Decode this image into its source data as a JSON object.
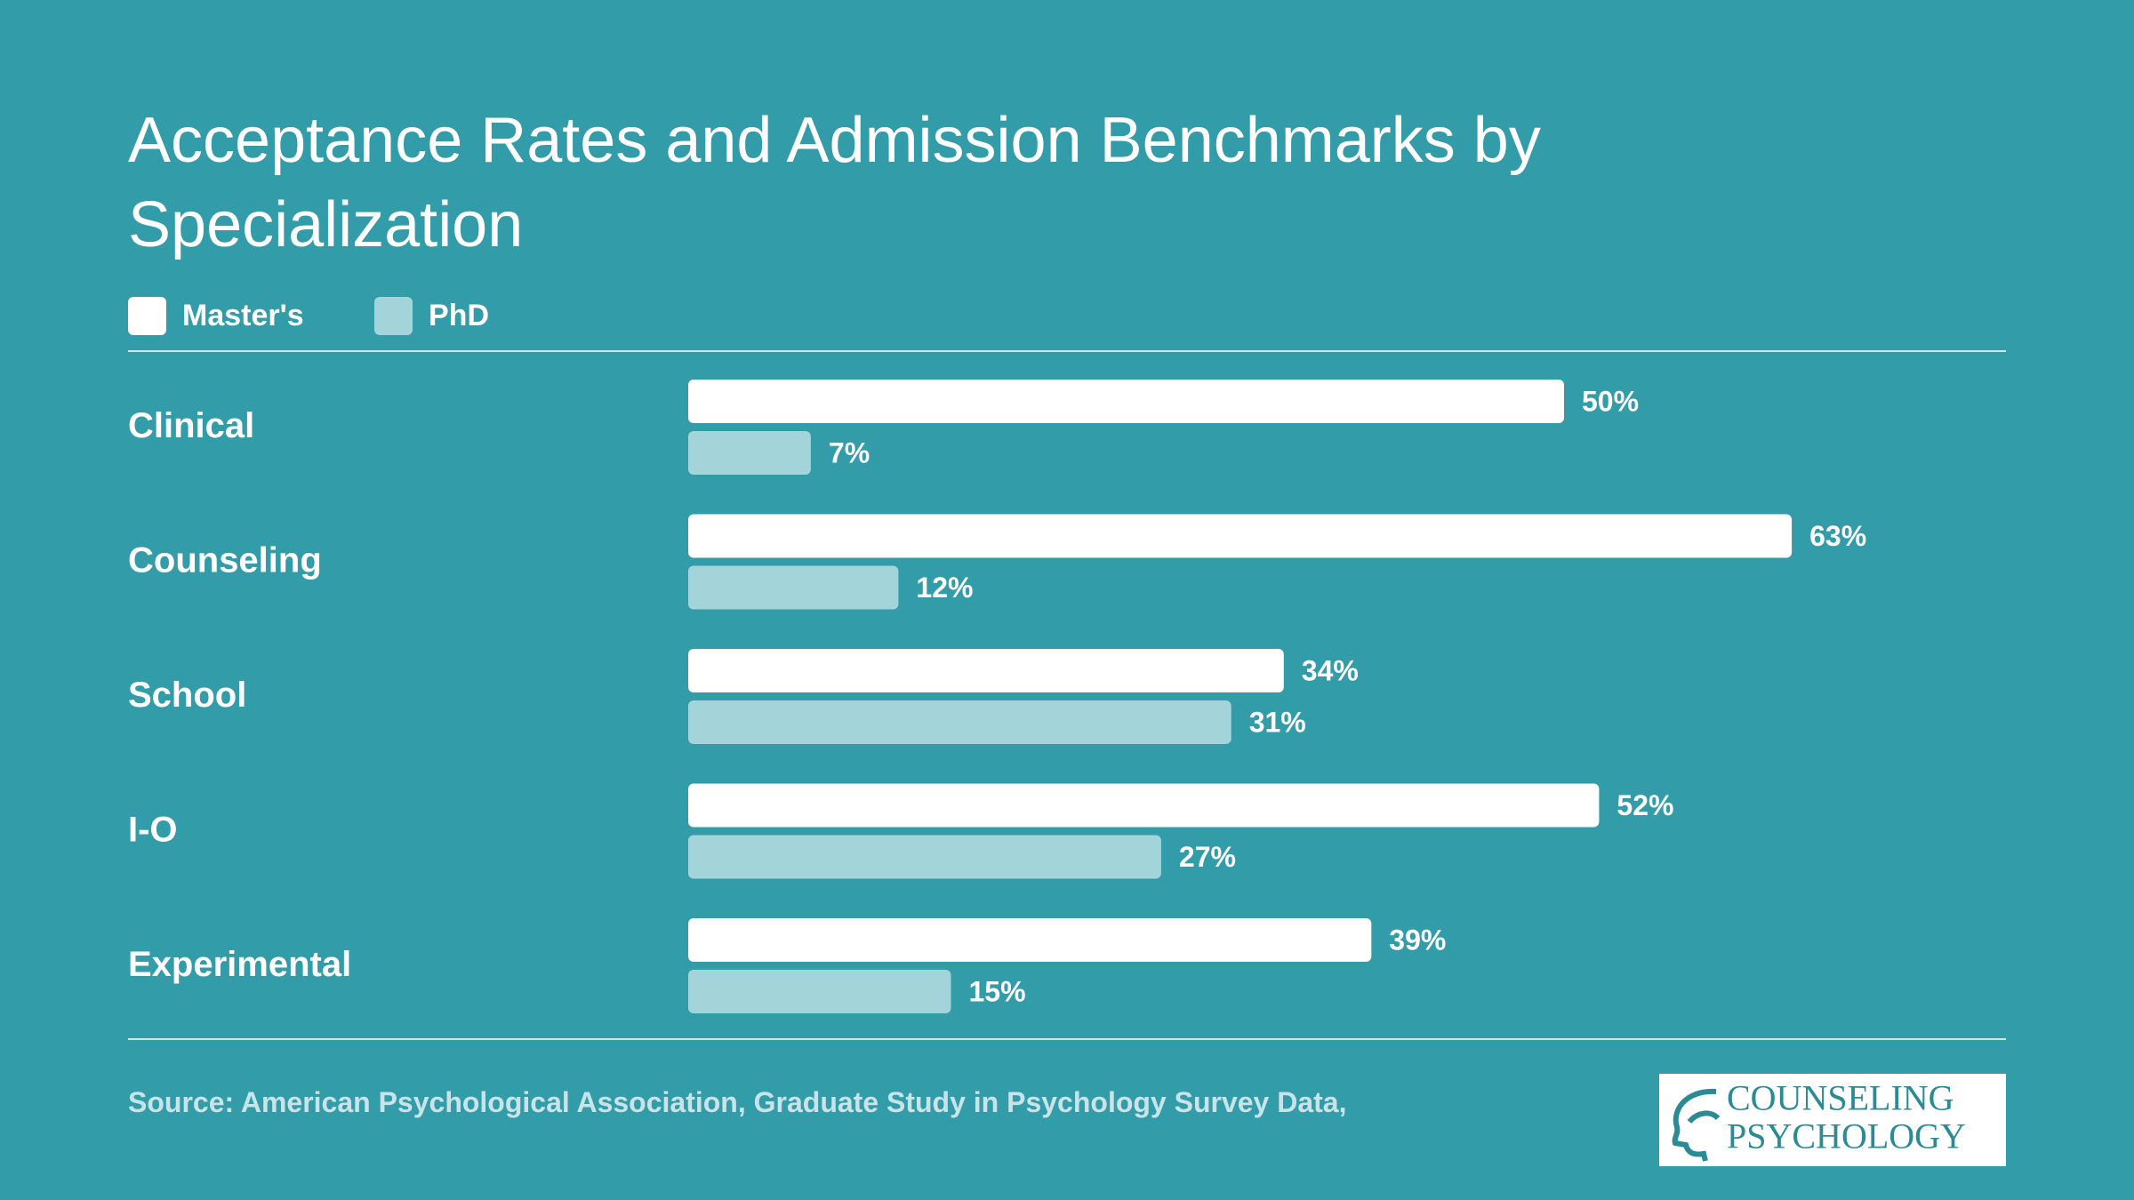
{
  "chart_data": {
    "type": "hbar",
    "title": "Acceptance Rates and Admission Benchmarks by Specialization",
    "categories": [
      "Clinical",
      "Counseling",
      "School",
      "I-O",
      "Experimental"
    ],
    "series": [
      {
        "name": "Master's",
        "color": "#ffffff",
        "values": [
          50,
          63,
          34,
          52,
          39
        ],
        "value_labels": [
          "50%",
          "63%",
          "34%",
          "52%",
          "39%"
        ]
      },
      {
        "name": "PhD",
        "color": "#a3d4da",
        "values": [
          7,
          12,
          31,
          27,
          15
        ],
        "value_labels": [
          "7%",
          "12%",
          "31%",
          "27%",
          "15%"
        ]
      }
    ],
    "source": "Source: American Psychological Association, Graduate Study in Psychology Survey Data,"
  },
  "logo": {
    "line1": "COUNSELING",
    "line2": "PSYCHOLOGY"
  }
}
